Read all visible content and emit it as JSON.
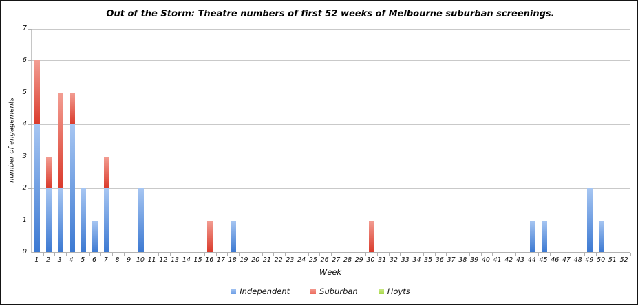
{
  "chart_data": {
    "type": "bar",
    "stacked": true,
    "title": "Out of the Storm: Theatre numbers of first 52 weeks of Melbourne suburban screenings.",
    "xlabel": "Week",
    "ylabel": "number of engagements",
    "ylim": [
      0,
      7
    ],
    "yticks": [
      0,
      1,
      2,
      3,
      4,
      5,
      6,
      7
    ],
    "grid": true,
    "legend_position": "bottom",
    "categories": [
      "1",
      "2",
      "3",
      "4",
      "5",
      "6",
      "7",
      "8",
      "9",
      "10",
      "11",
      "12",
      "13",
      "14",
      "15",
      "16",
      "17",
      "18",
      "19",
      "20",
      "21",
      "22",
      "23",
      "24",
      "25",
      "26",
      "27",
      "28",
      "29",
      "30",
      "31",
      "32",
      "33",
      "34",
      "35",
      "36",
      "37",
      "38",
      "39",
      "40",
      "41",
      "42",
      "43",
      "44",
      "45",
      "46",
      "47",
      "48",
      "49",
      "50",
      "51",
      "52"
    ],
    "series": [
      {
        "name": "Independent",
        "legend_color": "#6d9fe6",
        "color_top": "#a7c6f2",
        "color_bottom": "#3c79d2",
        "values": [
          4,
          2,
          2,
          4,
          2,
          1,
          2,
          0,
          0,
          2,
          0,
          0,
          0,
          0,
          0,
          0,
          0,
          1,
          0,
          0,
          0,
          0,
          0,
          0,
          0,
          0,
          0,
          0,
          0,
          0,
          0,
          0,
          0,
          0,
          0,
          0,
          0,
          0,
          0,
          0,
          0,
          0,
          0,
          1,
          1,
          0,
          0,
          0,
          2,
          1,
          0,
          0
        ]
      },
      {
        "name": "Suburban",
        "legend_color": "#ed6c5e",
        "color_top": "#f39e93",
        "color_bottom": "#da3a2b",
        "values": [
          2,
          1,
          3,
          1,
          0,
          0,
          1,
          0,
          0,
          0,
          0,
          0,
          0,
          0,
          0,
          1,
          0,
          0,
          0,
          0,
          0,
          0,
          0,
          0,
          0,
          0,
          0,
          0,
          0,
          1,
          0,
          0,
          0,
          0,
          0,
          0,
          0,
          0,
          0,
          0,
          0,
          0,
          0,
          0,
          0,
          0,
          0,
          0,
          0,
          0,
          0,
          0
        ]
      },
      {
        "name": "Hoyts",
        "legend_color": "#a8d94a",
        "color_top": "#cde98b",
        "color_bottom": "#8dc63f",
        "values": [
          0,
          0,
          0,
          0,
          0,
          0,
          0,
          0,
          0,
          0,
          0,
          0,
          0,
          0,
          0,
          0,
          0,
          0,
          0,
          0,
          0,
          0,
          0,
          0,
          0,
          0,
          0,
          0,
          0,
          0,
          0,
          0,
          0,
          0,
          0,
          0,
          0,
          0,
          0,
          0,
          0,
          0,
          0,
          0,
          0,
          0,
          0,
          0,
          0,
          0,
          0,
          0
        ]
      }
    ],
    "colors": {
      "gridline": "#c9c9c9",
      "baseline": "#b2b2b2",
      "axis_line": "#c6c6c6",
      "frame_border": "#151515",
      "text": "#111111",
      "background": "#ffffff"
    }
  }
}
